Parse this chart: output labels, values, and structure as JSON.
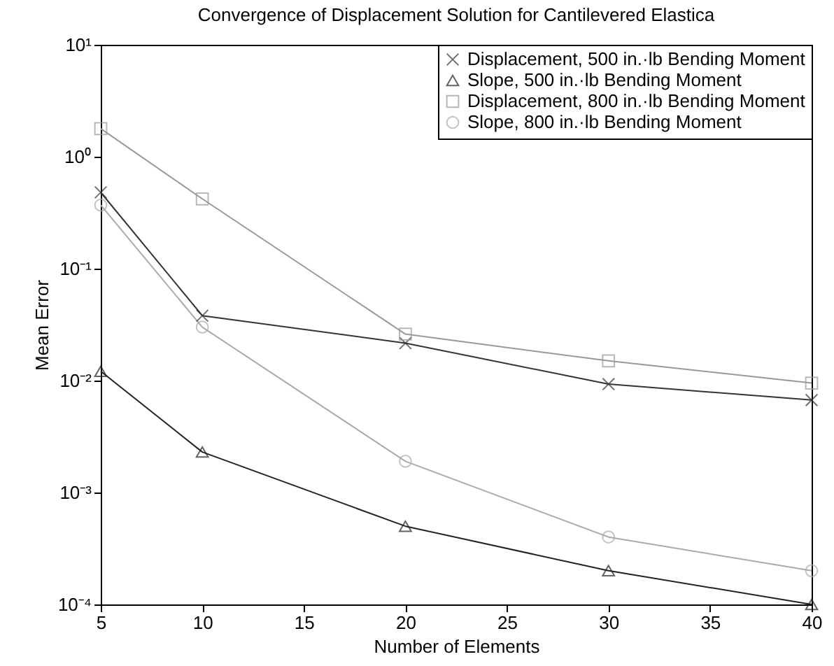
{
  "chart_data": {
    "type": "line",
    "title": "Convergence of Displacement Solution for Cantilevered Elastica",
    "xlabel": "Number of Elements",
    "ylabel": "Mean Error",
    "x": [
      5,
      10,
      20,
      30,
      40
    ],
    "series": [
      {
        "name": "Displacement, 500 in.·lb Bending Moment",
        "color": "#333333",
        "marker": "cross",
        "values": [
          0.48,
          0.038,
          0.0216,
          0.0093,
          0.0067
        ]
      },
      {
        "name": "Slope, 500 in.·lb Bending Moment",
        "color": "#222222",
        "marker": "triangle",
        "values": [
          0.0121,
          0.0023,
          0.0005,
          0.0002,
          0.0001
        ]
      },
      {
        "name": "Displacement, 800 in.·lb Bending Moment",
        "color": "#999999",
        "marker": "square",
        "values": [
          1.78,
          0.42,
          0.026,
          0.015,
          0.0095
        ]
      },
      {
        "name": "Slope, 800 in.·lb Bending Moment",
        "color": "#aaaaaa",
        "marker": "circle",
        "values": [
          0.37,
          0.03,
          0.0019,
          0.0004,
          0.0002
        ]
      }
    ],
    "xlim": [
      5,
      40
    ],
    "xticks": [
      5,
      10,
      15,
      20,
      25,
      30,
      35,
      40
    ],
    "ylim": [
      0.0001,
      10
    ],
    "yticks": [
      {
        "value": 0.0001,
        "label": "10⁻⁴"
      },
      {
        "value": 0.001,
        "label": "10⁻³"
      },
      {
        "value": 0.01,
        "label": "10⁻²"
      },
      {
        "value": 0.1,
        "label": "10⁻¹"
      },
      {
        "value": 1,
        "label": "10⁰"
      },
      {
        "value": 10,
        "label": "10¹"
      }
    ],
    "log": true,
    "grid": false,
    "legend": "top right",
    "line_style": "solid"
  }
}
